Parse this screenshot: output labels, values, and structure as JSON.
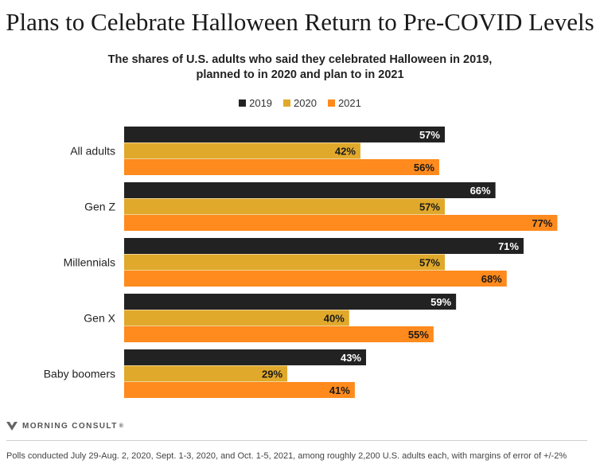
{
  "header": {
    "title": "Plans to Celebrate Halloween Return to Pre-COVID Levels",
    "subtitle_line1": "The shares of U.S. adults who said they celebrated Halloween in 2019,",
    "subtitle_line2": "planned to in 2020 and plan to in 2021"
  },
  "legend": [
    {
      "label": "2019",
      "color": "#222222"
    },
    {
      "label": "2020",
      "color": "#E0A92B"
    },
    {
      "label": "2021",
      "color": "#FF8A1D"
    }
  ],
  "chart_data": {
    "type": "bar",
    "orientation": "horizontal",
    "categories": [
      "All adults",
      "Gen Z",
      "Millennials",
      "Gen X",
      "Baby boomers"
    ],
    "series": [
      {
        "name": "2019",
        "color": "#222222",
        "values": [
          57,
          66,
          71,
          59,
          43
        ]
      },
      {
        "name": "2020",
        "color": "#E0A92B",
        "values": [
          42,
          57,
          57,
          40,
          29
        ]
      },
      {
        "name": "2021",
        "color": "#FF8A1D",
        "values": [
          56,
          77,
          68,
          55,
          41
        ]
      }
    ],
    "value_suffix": "%",
    "xlim": [
      0,
      100
    ],
    "legend_position": "top-center",
    "grid": false
  },
  "brand": {
    "name": "MORNING CONSULT",
    "mark": "®"
  },
  "footnote": "Polls conducted July 29-Aug. 2, 2020, Sept. 1-3, 2020, and Oct. 1-5, 2021, among roughly 2,200 U.S. adults each, with margins of error of +/-2%"
}
